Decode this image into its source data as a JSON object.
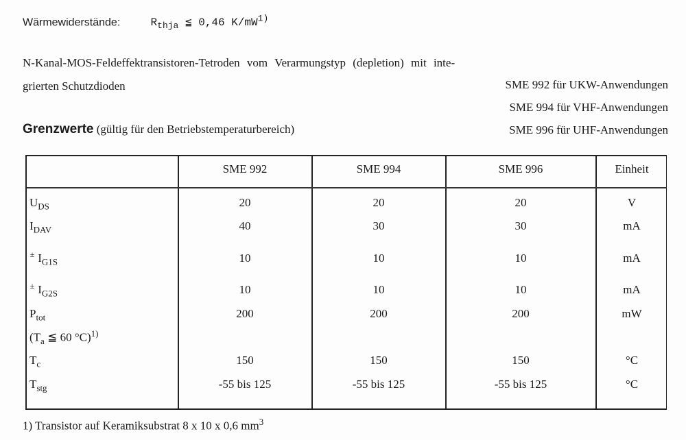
{
  "thermal": {
    "label": "Wärmewiderstände:",
    "symbol": "R",
    "symbol_sub": "thja",
    "relation": "≦",
    "value": "0,46 K/mW",
    "footnote_ref": "1)"
  },
  "intro": {
    "line1": "N-Kanal-MOS-Feldeffektransistoren-Tetroden vom Verarmungstyp (depletion) mit inte-",
    "line2": "grierten Schutzdioden"
  },
  "types": [
    {
      "type": "SME 992",
      "use": "für UKW-Anwendungen"
    },
    {
      "type": "SME 994",
      "use": "für VHF-Anwendungen"
    },
    {
      "type": "SME 996",
      "use": "für UHF-Anwendungen"
    }
  ],
  "section": {
    "title": "Grenzwerte",
    "subtitle": "(gültig für den Betriebstemperaturbereich)"
  },
  "table": {
    "headers": [
      "",
      "SME 992",
      "SME 994",
      "SME 996",
      "Einheit"
    ],
    "rows": [
      {
        "prefix": "",
        "sym": "U",
        "sub": "DS",
        "values": [
          "20",
          "20",
          "20"
        ],
        "unit": "V"
      },
      {
        "prefix": "",
        "sym": "I",
        "sub": "DAV",
        "values": [
          "40",
          "30",
          "30"
        ],
        "unit": "mA"
      },
      {
        "prefix": "±",
        "sym": "I",
        "sub": "G1S",
        "values": [
          "10",
          "10",
          "10"
        ],
        "unit": "mA"
      },
      {
        "prefix": "±",
        "sym": "I",
        "sub": "G2S",
        "values": [
          "10",
          "10",
          "10"
        ],
        "unit": "mA"
      },
      {
        "prefix": "",
        "sym": "P",
        "sub": "tot",
        "values": [
          "200",
          "200",
          "200"
        ],
        "unit": "mW",
        "condition": {
          "open": "(T",
          "sub": "a",
          "rest": " ≦ 60 °C)",
          "ref": "1)"
        }
      },
      {
        "prefix": "",
        "sym": "T",
        "sub": "c",
        "values": [
          "150",
          "150",
          "150"
        ],
        "unit": "°C"
      },
      {
        "prefix": "",
        "sym": "T",
        "sub": "stg",
        "values": [
          "-55 bis 125",
          "-55 bis 125",
          "-55 bis 125"
        ],
        "unit": "°C"
      }
    ]
  },
  "footnote": {
    "text": "1) Transistor auf Keramiksubstrat 8 x 10 x 0,6 mm",
    "sup": "3"
  }
}
